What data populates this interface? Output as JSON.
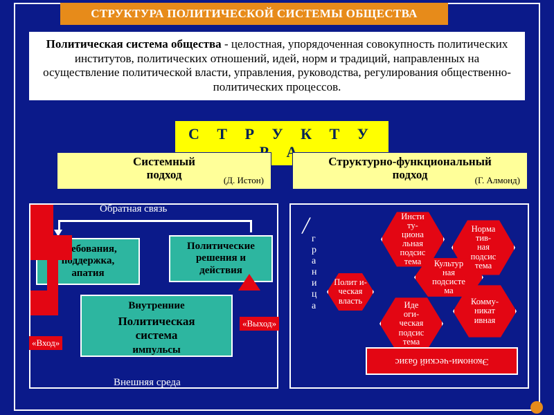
{
  "colors": {
    "bg": "#0b1a8a",
    "orange": "#e78b1a",
    "yellow": "#ffff00",
    "yellow_pale": "#ffff99",
    "teal": "#2db6a0",
    "red": "#e30613",
    "white": "#ffffff"
  },
  "title": "СТРУКТУРА ПОЛИТИЧЕСКОЙ СИСТЕМЫ ОБЩЕСТВА",
  "definition": {
    "term": "Политическая система общества",
    "text": " - целостная, упорядоченная совокупность политических институтов, политических отношений, идей, норм и традиций, направленных на осуществление политической власти, управления, руководства, регулирования общественно-политических процессов."
  },
  "structure_label": "С Т Р У К Т У Р А",
  "approaches": {
    "left": {
      "title": "Системный\nподход",
      "author": "(Д. Истон)"
    },
    "right": {
      "title": "Структурно-функциональный\nподход",
      "author": "(Г. Алмонд)"
    }
  },
  "left_diagram": {
    "feedback": "Обратная связь",
    "demands": "Требования,\nподдержка,\nапатия",
    "decisions": "Политические\nрешения и\nдействия",
    "impulses_top": "Внутренние",
    "impulses_mid": "Политическая\nсистема",
    "impulses_bot": "импульсы",
    "input": "«Вход»",
    "output": "«Выход»",
    "env": "Внешняя среда"
  },
  "right_diagram": {
    "granica": "г\nр\nа\nн\nи\nц\nа",
    "power": "Полит и-\nческая\nвласть",
    "inst": "Инсти\nту-\nциона\nльная\nподсис\nтема",
    "norm": "Норма\nтив-\nная\nподсис\nтема",
    "cult": "Культур\nная\nподсисте\nма",
    "ideo": "Иде\nоги-\nческая\nподсис\nтема",
    "comm": "Комму-\nникат\nивная",
    "base": "Экономи-ческий базис"
  }
}
